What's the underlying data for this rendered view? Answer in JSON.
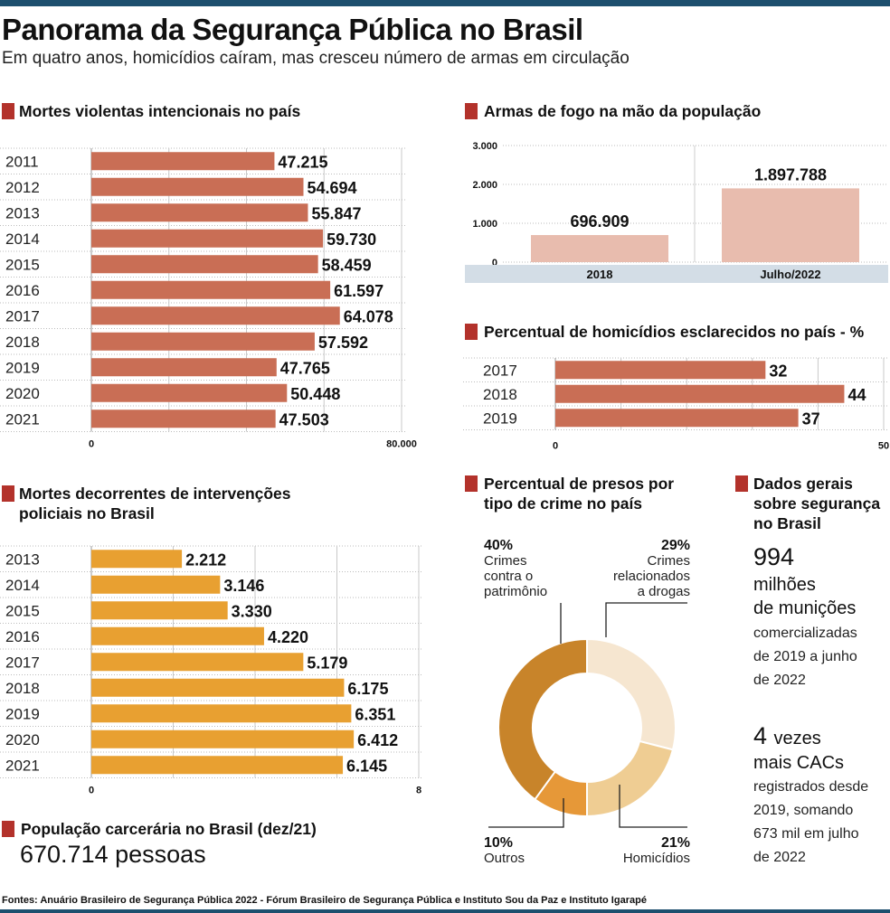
{
  "header": {
    "title": "Panorama da Segurança Pública no Brasil",
    "subtitle": "Em quatro anos, homicídios caíram, mas cresceu número de armas em circulação"
  },
  "colors": {
    "accent_square": "#b3322b",
    "bar_red": "#c96e55",
    "bar_orange": "#e8a031",
    "bar_pink": "#e8bcae",
    "donut_patrimonio": "#c8842a",
    "donut_drogas": "#f6e6d0",
    "donut_homicidios": "#efcd93",
    "donut_outros": "#e69838",
    "band": "#d3dde6"
  },
  "sections": {
    "mortes_violentas": "Mortes violentas intencionais no país",
    "armas": "Armas de fogo na mão da população",
    "esclarecidos": "Percentual de homicídios esclarecidos no país - %",
    "intervencoes": [
      "Mortes decorrentes de intervenções",
      "policiais no Brasil"
    ],
    "presos": [
      "Percentual de presos por",
      "tipo de crime no país"
    ],
    "dados_gerais": [
      "Dados gerais",
      "sobre segurança",
      "no Brasil"
    ],
    "populacao": "População carcerária no Brasil (dez/21)"
  },
  "populacao_value": "670.714 pessoas",
  "dados_gerais": {
    "municoes_number": "994",
    "municoes_unit": [
      "milhões",
      "de munições"
    ],
    "municoes_desc": [
      "comercializadas",
      "de 2019 a junho",
      "de 2022"
    ],
    "cacs_number": "4",
    "cacs_unit_1": "vezes",
    "cacs_unit_2": "mais CACs",
    "cacs_desc": [
      "registrados desde",
      "2019, somando",
      "673 mil em julho",
      "de 2022"
    ]
  },
  "footer": "Fontes: Anuário Brasileiro de Segurança Pública 2022 -  Fórum Brasileiro de Segurança Pública e Instituto Sou da Paz e Instituto Igarapé",
  "chart_data": [
    {
      "id": "mortes_violentas",
      "type": "bar",
      "orientation": "horizontal",
      "title": "Mortes violentas intencionais no país",
      "categories": [
        "2011",
        "2012",
        "2013",
        "2014",
        "2015",
        "2016",
        "2017",
        "2018",
        "2019",
        "2020",
        "2021"
      ],
      "values": [
        47215,
        54694,
        55847,
        59730,
        58459,
        61597,
        64078,
        57592,
        47765,
        50448,
        47503
      ],
      "value_labels": [
        "47.215",
        "54.694",
        "55.847",
        "59.730",
        "58.459",
        "61.597",
        "64.078",
        "57.592",
        "47.765",
        "50.448",
        "47.503"
      ],
      "xlim": [
        0,
        80000
      ],
      "x_tick_labels": [
        "0",
        "80.000"
      ],
      "grid": true
    },
    {
      "id": "armas",
      "type": "bar",
      "orientation": "vertical",
      "title": "Armas de fogo na mão da população",
      "categories": [
        "2018",
        "Julho/2022"
      ],
      "values": [
        696909,
        1897788
      ],
      "value_labels": [
        "696.909",
        "1.897.788"
      ],
      "ylim": [
        0,
        3000000
      ],
      "y_tick_labels": [
        "0",
        "1.000",
        "2.000",
        "3.000"
      ],
      "grid": true
    },
    {
      "id": "esclarecidos",
      "type": "bar",
      "orientation": "horizontal",
      "title": "Percentual de homicídios esclarecidos no país - %",
      "categories": [
        "2017",
        "2018",
        "2019"
      ],
      "values": [
        32,
        44,
        37
      ],
      "value_labels": [
        "32",
        "44",
        "37"
      ],
      "xlim": [
        0,
        50
      ],
      "x_tick_labels": [
        "0",
        "50"
      ],
      "grid": true
    },
    {
      "id": "intervencoes",
      "type": "bar",
      "orientation": "horizontal",
      "title": "Mortes decorrentes de intervenções policiais no Brasil",
      "categories": [
        "2013",
        "2014",
        "2015",
        "2016",
        "2017",
        "2018",
        "2019",
        "2020",
        "2021"
      ],
      "values": [
        2212,
        3146,
        3330,
        4220,
        5179,
        6175,
        6351,
        6412,
        6145
      ],
      "value_labels": [
        "2.212",
        "3.146",
        "3.330",
        "4.220",
        "5.179",
        "6.175",
        "6.351",
        "6.412",
        "6.145"
      ],
      "xlim": [
        0,
        8000
      ],
      "x_tick_labels": [
        "0",
        "8"
      ],
      "grid": true
    },
    {
      "id": "presos",
      "type": "pie",
      "donut": true,
      "title": "Percentual de presos por tipo de crime no país",
      "slices": [
        {
          "key": "drogas",
          "percent_label": "29%",
          "label": [
            "Crimes",
            "relacionados",
            "a drogas"
          ],
          "value": 29
        },
        {
          "key": "homicidios",
          "percent_label": "21%",
          "label": [
            "Homicídios"
          ],
          "value": 21
        },
        {
          "key": "outros",
          "percent_label": "10%",
          "label": [
            "Outros"
          ],
          "value": 10
        },
        {
          "key": "patrimonio",
          "percent_label": "40%",
          "label": [
            "Crimes",
            "contra o",
            "patrimônio"
          ],
          "value": 40
        }
      ]
    }
  ]
}
